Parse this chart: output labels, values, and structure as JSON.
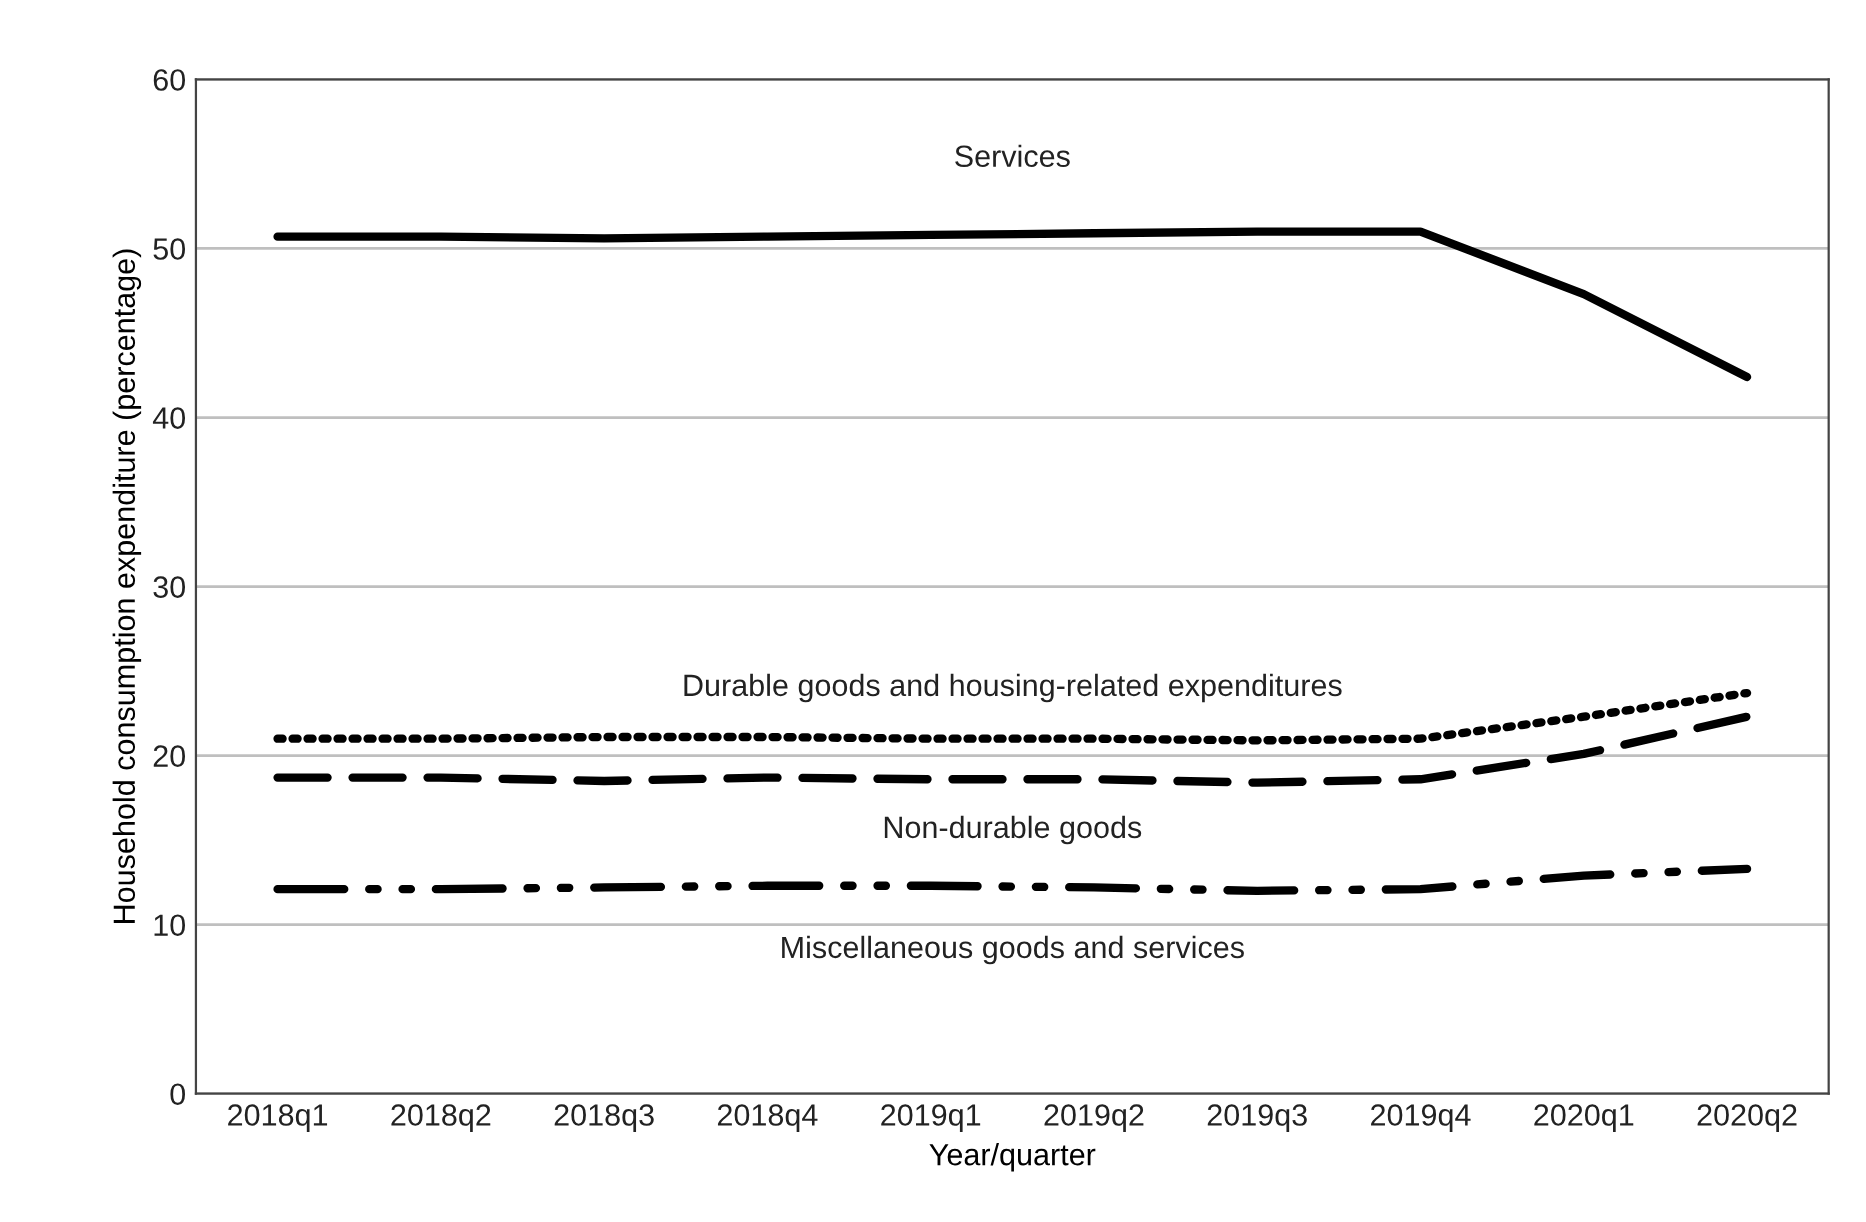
{
  "chart_data": {
    "type": "line",
    "xlabel": "Year/quarter",
    "ylabel": "Household consumption expenditure (percentage)",
    "categories": [
      "2018q1",
      "2018q2",
      "2018q3",
      "2018q4",
      "2019q1",
      "2019q2",
      "2019q3",
      "2019q4",
      "2020q1",
      "2020q2"
    ],
    "series": [
      {
        "name": "Services",
        "color": "#000000",
        "line_style": "solid",
        "values": [
          50.7,
          50.7,
          50.6,
          50.7,
          50.8,
          50.9,
          51.0,
          51.0,
          47.3,
          42.4
        ]
      },
      {
        "name": "Durable goods and housing-related expenditures",
        "color": "#000000",
        "line_style": "dotted",
        "values": [
          21.0,
          21.0,
          21.1,
          21.1,
          21.0,
          21.0,
          20.9,
          21.0,
          22.3,
          23.7
        ]
      },
      {
        "name": "Non-durable goods",
        "color": "#000000",
        "line_style": "dashed",
        "values": [
          18.7,
          18.7,
          18.5,
          18.7,
          18.6,
          18.6,
          18.4,
          18.6,
          20.1,
          22.3
        ]
      },
      {
        "name": "Miscellaneous goods and services",
        "color": "#000000",
        "line_style": "dashdotdot",
        "values": [
          12.1,
          12.1,
          12.2,
          12.3,
          12.3,
          12.2,
          12.0,
          12.1,
          12.9,
          13.3
        ]
      }
    ],
    "ylim": [
      0,
      60
    ],
    "yticks": [
      0,
      10,
      20,
      30,
      40,
      50,
      60
    ],
    "grid": "y",
    "legend": false
  }
}
